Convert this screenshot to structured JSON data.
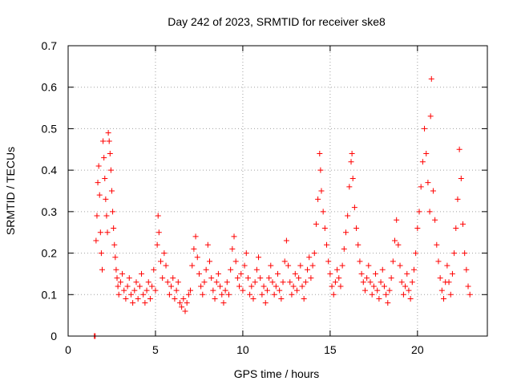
{
  "chart_data": {
    "type": "scatter",
    "title": "Day 242 of 2023, SRMTID for receiver ske8",
    "xlabel": "GPS time / hours",
    "ylabel": "SRMTID / TECUs",
    "xlim": [
      0,
      24
    ],
    "ylim": [
      0,
      0.7
    ],
    "xticks": [
      0,
      5,
      10,
      15,
      20
    ],
    "yticks": [
      0,
      0.1,
      0.2,
      0.3,
      0.4,
      0.5,
      0.6,
      0.7
    ],
    "xtick_labels": [
      "0",
      "5",
      "10",
      "15",
      "20"
    ],
    "ytick_labels": [
      "0",
      "0.1",
      "0.2",
      "0.3",
      "0.4",
      "0.5",
      "0.6",
      "0.7"
    ],
    "grid": true,
    "marker": "plus",
    "color": "#ff0000",
    "series": [
      {
        "name": "SRMTID",
        "points": [
          [
            1.5,
            0.0
          ],
          [
            1.55,
            0.0
          ],
          [
            1.6,
            0.23
          ],
          [
            1.65,
            0.29
          ],
          [
            1.7,
            0.37
          ],
          [
            1.75,
            0.41
          ],
          [
            1.8,
            0.34
          ],
          [
            1.85,
            0.25
          ],
          [
            1.9,
            0.2
          ],
          [
            1.95,
            0.16
          ],
          [
            2.0,
            0.47
          ],
          [
            2.05,
            0.43
          ],
          [
            2.1,
            0.38
          ],
          [
            2.15,
            0.33
          ],
          [
            2.2,
            0.29
          ],
          [
            2.25,
            0.25
          ],
          [
            2.3,
            0.49
          ],
          [
            2.35,
            0.47
          ],
          [
            2.4,
            0.44
          ],
          [
            2.45,
            0.4
          ],
          [
            2.5,
            0.35
          ],
          [
            2.55,
            0.3
          ],
          [
            2.6,
            0.26
          ],
          [
            2.65,
            0.22
          ],
          [
            2.7,
            0.19
          ],
          [
            2.75,
            0.16
          ],
          [
            2.8,
            0.14
          ],
          [
            2.85,
            0.12
          ],
          [
            2.9,
            0.1
          ],
          [
            3.0,
            0.13
          ],
          [
            3.1,
            0.15
          ],
          [
            3.2,
            0.11
          ],
          [
            3.3,
            0.09
          ],
          [
            3.4,
            0.12
          ],
          [
            3.5,
            0.14
          ],
          [
            3.6,
            0.1
          ],
          [
            3.7,
            0.08
          ],
          [
            3.8,
            0.11
          ],
          [
            3.9,
            0.13
          ],
          [
            4.0,
            0.09
          ],
          [
            4.1,
            0.12
          ],
          [
            4.2,
            0.15
          ],
          [
            4.3,
            0.1
          ],
          [
            4.4,
            0.08
          ],
          [
            4.5,
            0.11
          ],
          [
            4.6,
            0.13
          ],
          [
            4.7,
            0.09
          ],
          [
            4.8,
            0.12
          ],
          [
            4.9,
            0.16
          ],
          [
            5.0,
            0.11
          ],
          [
            5.1,
            0.22
          ],
          [
            5.15,
            0.29
          ],
          [
            5.2,
            0.25
          ],
          [
            5.3,
            0.18
          ],
          [
            5.4,
            0.14
          ],
          [
            5.5,
            0.2
          ],
          [
            5.6,
            0.17
          ],
          [
            5.7,
            0.13
          ],
          [
            5.8,
            0.1
          ],
          [
            5.9,
            0.12
          ],
          [
            6.0,
            0.14
          ],
          [
            6.1,
            0.09
          ],
          [
            6.2,
            0.11
          ],
          [
            6.3,
            0.13
          ],
          [
            6.4,
            0.08
          ],
          [
            6.5,
            0.07
          ],
          [
            6.6,
            0.09
          ],
          [
            6.7,
            0.06
          ],
          [
            6.8,
            0.08
          ],
          [
            6.9,
            0.1
          ],
          [
            7.0,
            0.11
          ],
          [
            7.1,
            0.17
          ],
          [
            7.2,
            0.21
          ],
          [
            7.3,
            0.24
          ],
          [
            7.4,
            0.19
          ],
          [
            7.5,
            0.15
          ],
          [
            7.6,
            0.12
          ],
          [
            7.7,
            0.1
          ],
          [
            7.8,
            0.13
          ],
          [
            7.9,
            0.16
          ],
          [
            8.0,
            0.22
          ],
          [
            8.1,
            0.18
          ],
          [
            8.2,
            0.14
          ],
          [
            8.3,
            0.11
          ],
          [
            8.4,
            0.09
          ],
          [
            8.5,
            0.13
          ],
          [
            8.6,
            0.15
          ],
          [
            8.7,
            0.12
          ],
          [
            8.8,
            0.1
          ],
          [
            8.9,
            0.08
          ],
          [
            9.0,
            0.11
          ],
          [
            9.1,
            0.13
          ],
          [
            9.2,
            0.1
          ],
          [
            9.3,
            0.16
          ],
          [
            9.4,
            0.21
          ],
          [
            9.5,
            0.24
          ],
          [
            9.6,
            0.18
          ],
          [
            9.7,
            0.14
          ],
          [
            9.8,
            0.12
          ],
          [
            9.9,
            0.15
          ],
          [
            10.0,
            0.11
          ],
          [
            10.1,
            0.17
          ],
          [
            10.2,
            0.2
          ],
          [
            10.3,
            0.14
          ],
          [
            10.4,
            0.1
          ],
          [
            10.5,
            0.12
          ],
          [
            10.6,
            0.09
          ],
          [
            10.7,
            0.13
          ],
          [
            10.8,
            0.16
          ],
          [
            10.9,
            0.19
          ],
          [
            11.0,
            0.14
          ],
          [
            11.1,
            0.1
          ],
          [
            11.2,
            0.12
          ],
          [
            11.3,
            0.08
          ],
          [
            11.4,
            0.11
          ],
          [
            11.5,
            0.14
          ],
          [
            11.6,
            0.17
          ],
          [
            11.7,
            0.13
          ],
          [
            11.8,
            0.1
          ],
          [
            11.9,
            0.12
          ],
          [
            12.0,
            0.15
          ],
          [
            12.1,
            0.11
          ],
          [
            12.2,
            0.09
          ],
          [
            12.3,
            0.13
          ],
          [
            12.4,
            0.18
          ],
          [
            12.5,
            0.23
          ],
          [
            12.6,
            0.17
          ],
          [
            12.7,
            0.13
          ],
          [
            12.8,
            0.1
          ],
          [
            12.9,
            0.12
          ],
          [
            13.0,
            0.15
          ],
          [
            13.1,
            0.11
          ],
          [
            13.2,
            0.14
          ],
          [
            13.3,
            0.17
          ],
          [
            13.4,
            0.12
          ],
          [
            13.5,
            0.09
          ],
          [
            13.6,
            0.13
          ],
          [
            13.7,
            0.16
          ],
          [
            13.8,
            0.19
          ],
          [
            13.9,
            0.14
          ],
          [
            14.0,
            0.17
          ],
          [
            14.1,
            0.2
          ],
          [
            14.2,
            0.27
          ],
          [
            14.3,
            0.33
          ],
          [
            14.4,
            0.44
          ],
          [
            14.45,
            0.4
          ],
          [
            14.5,
            0.35
          ],
          [
            14.6,
            0.3
          ],
          [
            14.7,
            0.26
          ],
          [
            14.8,
            0.22
          ],
          [
            14.9,
            0.18
          ],
          [
            15.0,
            0.15
          ],
          [
            15.1,
            0.12
          ],
          [
            15.2,
            0.1
          ],
          [
            15.3,
            0.13
          ],
          [
            15.4,
            0.16
          ],
          [
            15.5,
            0.14
          ],
          [
            15.6,
            0.12
          ],
          [
            15.7,
            0.17
          ],
          [
            15.8,
            0.21
          ],
          [
            15.9,
            0.25
          ],
          [
            16.0,
            0.29
          ],
          [
            16.1,
            0.36
          ],
          [
            16.2,
            0.42
          ],
          [
            16.25,
            0.44
          ],
          [
            16.3,
            0.38
          ],
          [
            16.4,
            0.31
          ],
          [
            16.5,
            0.26
          ],
          [
            16.6,
            0.22
          ],
          [
            16.7,
            0.18
          ],
          [
            16.8,
            0.15
          ],
          [
            16.9,
            0.13
          ],
          [
            17.0,
            0.11
          ],
          [
            17.1,
            0.14
          ],
          [
            17.2,
            0.17
          ],
          [
            17.3,
            0.13
          ],
          [
            17.4,
            0.1
          ],
          [
            17.5,
            0.12
          ],
          [
            17.6,
            0.15
          ],
          [
            17.7,
            0.11
          ],
          [
            17.8,
            0.09
          ],
          [
            17.9,
            0.13
          ],
          [
            18.0,
            0.16
          ],
          [
            18.1,
            0.12
          ],
          [
            18.2,
            0.1
          ],
          [
            18.3,
            0.08
          ],
          [
            18.4,
            0.11
          ],
          [
            18.5,
            0.14
          ],
          [
            18.6,
            0.18
          ],
          [
            18.7,
            0.23
          ],
          [
            18.8,
            0.28
          ],
          [
            18.9,
            0.22
          ],
          [
            19.0,
            0.17
          ],
          [
            19.1,
            0.13
          ],
          [
            19.2,
            0.1
          ],
          [
            19.3,
            0.12
          ],
          [
            19.4,
            0.15
          ],
          [
            19.5,
            0.11
          ],
          [
            19.6,
            0.09
          ],
          [
            19.7,
            0.13
          ],
          [
            19.8,
            0.16
          ],
          [
            19.9,
            0.2
          ],
          [
            20.0,
            0.26
          ],
          [
            20.1,
            0.3
          ],
          [
            20.2,
            0.36
          ],
          [
            20.3,
            0.42
          ],
          [
            20.4,
            0.5
          ],
          [
            20.5,
            0.44
          ],
          [
            20.6,
            0.37
          ],
          [
            20.7,
            0.3
          ],
          [
            20.75,
            0.53
          ],
          [
            20.8,
            0.62
          ],
          [
            20.9,
            0.35
          ],
          [
            21.0,
            0.28
          ],
          [
            21.1,
            0.22
          ],
          [
            21.2,
            0.18
          ],
          [
            21.3,
            0.14
          ],
          [
            21.4,
            0.11
          ],
          [
            21.5,
            0.09
          ],
          [
            21.6,
            0.13
          ],
          [
            21.7,
            0.17
          ],
          [
            21.8,
            0.13
          ],
          [
            21.9,
            0.1
          ],
          [
            22.0,
            0.15
          ],
          [
            22.1,
            0.2
          ],
          [
            22.2,
            0.26
          ],
          [
            22.3,
            0.33
          ],
          [
            22.4,
            0.45
          ],
          [
            22.5,
            0.38
          ],
          [
            22.6,
            0.27
          ],
          [
            22.7,
            0.2
          ],
          [
            22.8,
            0.16
          ],
          [
            22.9,
            0.12
          ],
          [
            23.0,
            0.1
          ]
        ]
      }
    ]
  }
}
